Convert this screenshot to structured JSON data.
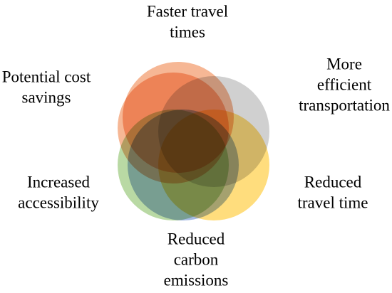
{
  "nodes": [
    {
      "label": [
        "Faster travel",
        "times"
      ]
    },
    {
      "label": [
        "More",
        "efficient",
        "transportation"
      ]
    },
    {
      "label": [
        "Reduced",
        "travel time"
      ]
    },
    {
      "label": [
        "Reduced",
        "carbon",
        "emissions"
      ]
    },
    {
      "label": [
        "Increased",
        "accessibility"
      ]
    },
    {
      "label": [
        "Potential cost",
        "savings"
      ]
    }
  ]
}
